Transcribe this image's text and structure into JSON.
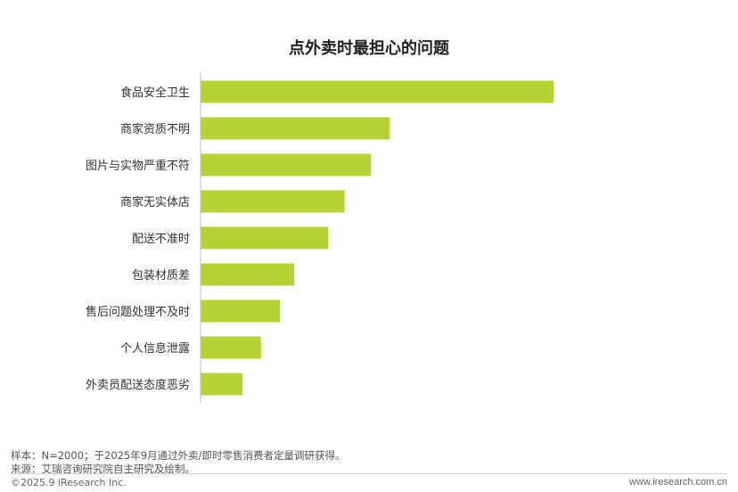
{
  "chart_data": {
    "type": "bar",
    "orientation": "horizontal",
    "title": "点外卖时最担心的问题",
    "categories": [
      "食品安全卫生",
      "商家资质不明",
      "图片与实物严重不符",
      "商家无实体店",
      "配送不准时",
      "包装材质差",
      "售后问题处理不及时",
      "个人信息泄露",
      "外卖员配送态度恶劣"
    ],
    "values": [
      100,
      53.6,
      48.3,
      40.8,
      36.2,
      26.5,
      22.5,
      17.1,
      11.9
    ],
    "xlim": [
      0,
      100
    ],
    "bar_color": "#b5d334",
    "axis_color": "#bfbfbf",
    "grid": false
  },
  "footer": {
    "note": "样本：N=2000；于2025年9月通过外卖/即时零售消费者定量调研获得。",
    "source": "来源：艾瑞咨询研究院自主研究及绘制。",
    "copyright": "©2025.9 iResearch Inc.",
    "website": "www.iresearch.com.cn"
  }
}
